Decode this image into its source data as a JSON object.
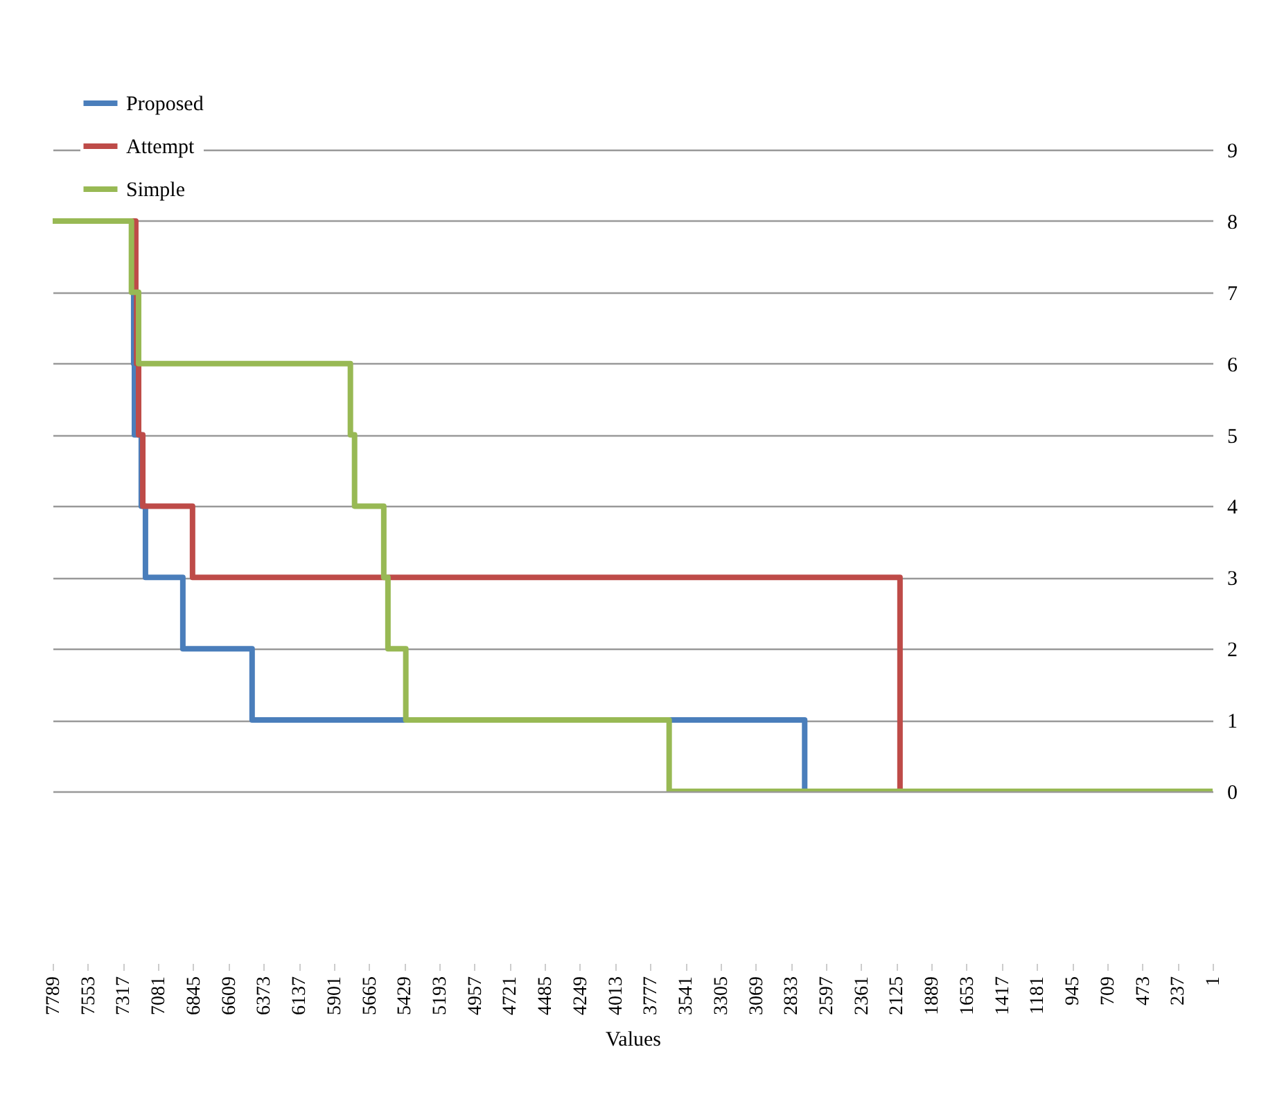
{
  "chart_data": {
    "type": "step",
    "xlabel": "Values",
    "legend": "top left",
    "grid": "y",
    "xlim": [
      7789,
      1
    ],
    "xticks": [
      7789,
      7553,
      7317,
      7081,
      6845,
      6609,
      6373,
      6137,
      5901,
      5665,
      5429,
      5193,
      4957,
      4721,
      4485,
      4249,
      4013,
      3777,
      3541,
      3305,
      3069,
      2833,
      2597,
      2361,
      2125,
      1889,
      1653,
      1417,
      1181,
      945,
      709,
      473,
      237,
      1
    ],
    "y2lim": [
      0,
      9
    ],
    "y2ticks": [
      0,
      1,
      2,
      3,
      4,
      5,
      6,
      7,
      8,
      9
    ],
    "series": [
      {
        "name": "Proposed",
        "axis": "y2",
        "color": "#4a7ebb",
        "x": [
          7789,
          7250,
          7245,
          7240,
          7194,
          7166,
          6915,
          6450,
          2740,
          1
        ],
        "values": [
          8,
          7,
          6,
          5,
          4,
          3,
          2,
          1,
          0,
          0
        ]
      },
      {
        "name": "Attempt",
        "axis": "y2",
        "color": "#be4b48",
        "x": [
          7789,
          7231,
          7225,
          7212,
          7184,
          6850,
          2100,
          1
        ],
        "values": [
          8,
          7,
          6,
          5,
          4,
          3,
          0,
          0
        ]
      },
      {
        "name": "Simple",
        "axis": "y2",
        "color": "#98b954",
        "x": [
          7789,
          7260,
          7212,
          5790,
          5762,
          5566,
          5538,
          5418,
          3650,
          1
        ],
        "values": [
          8,
          7,
          6,
          5,
          4,
          3,
          2,
          1,
          0,
          0
        ]
      }
    ]
  }
}
